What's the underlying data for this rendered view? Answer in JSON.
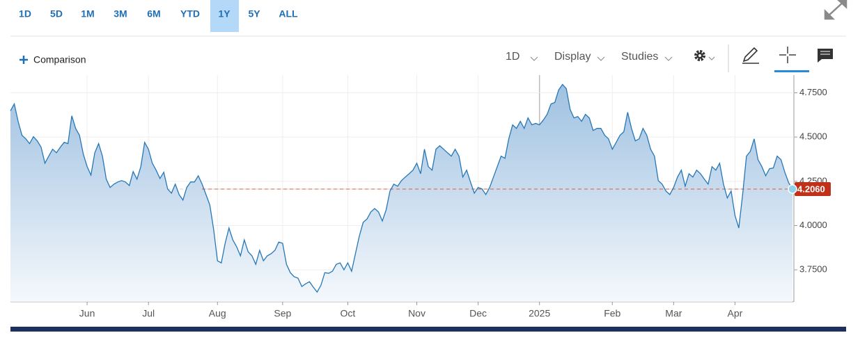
{
  "ui": {
    "ranges": [
      "1D",
      "5D",
      "1M",
      "3M",
      "6M",
      "YTD",
      "1Y",
      "5Y",
      "ALL"
    ],
    "selected": "1Y",
    "comparison": "Comparison",
    "interval": "1D",
    "display": "Display",
    "studies": "Studies"
  },
  "chart_data": {
    "type": "area",
    "color": "#2677b5",
    "categories": [
      null,
      null,
      null,
      null,
      null,
      null,
      null,
      null,
      null,
      null,
      null,
      null,
      null,
      null,
      null,
      null,
      null,
      null,
      null,
      null,
      "Jun",
      null,
      null,
      null,
      null,
      null,
      null,
      null,
      null,
      null,
      null,
      null,
      null,
      null,
      null,
      null,
      "Jul",
      null,
      null,
      null,
      null,
      null,
      null,
      null,
      null,
      null,
      null,
      null,
      null,
      null,
      null,
      null,
      null,
      null,
      "Aug",
      null,
      null,
      null,
      null,
      null,
      null,
      null,
      null,
      null,
      null,
      null,
      null,
      null,
      null,
      null,
      null,
      "Sep",
      null,
      null,
      null,
      null,
      null,
      null,
      null,
      null,
      null,
      null,
      null,
      null,
      null,
      null,
      null,
      null,
      "Oct",
      null,
      null,
      null,
      null,
      null,
      null,
      null,
      null,
      null,
      null,
      null,
      null,
      null,
      null,
      null,
      null,
      null,
      "Nov",
      null,
      null,
      null,
      null,
      null,
      null,
      null,
      null,
      null,
      null,
      null,
      null,
      null,
      null,
      null,
      "Dec",
      null,
      null,
      null,
      null,
      null,
      null,
      null,
      null,
      null,
      null,
      null,
      null,
      null,
      null,
      null,
      "2025",
      null,
      null,
      null,
      null,
      null,
      null,
      null,
      null,
      null,
      null,
      null,
      null,
      null,
      null,
      null,
      null,
      null,
      null,
      "Feb",
      null,
      null,
      null,
      null,
      null,
      null,
      null,
      null,
      null,
      null,
      null,
      null,
      null,
      null,
      null,
      "Mar",
      null,
      null,
      null,
      null,
      null,
      null,
      null,
      null,
      null,
      null,
      null,
      null,
      null,
      null,
      null,
      "Apr",
      null,
      null,
      null,
      null,
      null,
      null,
      null,
      null,
      null,
      null,
      null,
      null,
      null,
      null,
      null
    ],
    "values": [
      4.648,
      4.687,
      4.589,
      4.51,
      4.49,
      4.463,
      4.502,
      4.478,
      4.443,
      4.352,
      4.392,
      4.431,
      4.411,
      4.443,
      4.47,
      4.463,
      4.62,
      4.549,
      4.51,
      4.404,
      4.333,
      4.285,
      4.411,
      4.463,
      4.392,
      4.262,
      4.215,
      4.234,
      4.246,
      4.254,
      4.246,
      4.226,
      4.305,
      4.262,
      4.333,
      4.47,
      4.431,
      4.352,
      4.313,
      4.266,
      4.301,
      4.207,
      4.183,
      4.234,
      4.175,
      4.144,
      4.215,
      4.246,
      4.246,
      4.281,
      4.234,
      4.175,
      4.116,
      3.978,
      3.801,
      3.789,
      3.9,
      3.986,
      3.919,
      3.88,
      3.829,
      3.919,
      3.852,
      3.829,
      3.781,
      3.86,
      3.801,
      3.829,
      3.841,
      3.86,
      3.907,
      3.9,
      3.781,
      3.734,
      3.711,
      3.703,
      3.656,
      3.671,
      3.683,
      3.652,
      3.624,
      3.663,
      3.734,
      3.73,
      3.742,
      3.781,
      3.789,
      3.75,
      3.789,
      3.742,
      3.841,
      3.939,
      4.018,
      4.037,
      4.077,
      4.096,
      4.077,
      4.026,
      4.089,
      4.195,
      4.234,
      4.222,
      4.254,
      4.274,
      4.293,
      4.313,
      4.352,
      4.293,
      4.431,
      4.333,
      4.313,
      4.431,
      4.451,
      4.431,
      4.411,
      4.392,
      4.431,
      4.392,
      4.274,
      4.313,
      4.246,
      4.183,
      4.215,
      4.207,
      4.175,
      4.215,
      4.274,
      4.333,
      4.392,
      4.38,
      4.49,
      4.569,
      4.549,
      4.589,
      4.549,
      4.608,
      4.569,
      4.577,
      4.569,
      4.596,
      4.628,
      4.687,
      4.695,
      4.766,
      4.797,
      4.774,
      4.656,
      4.608,
      4.616,
      4.589,
      4.628,
      4.608,
      4.537,
      4.549,
      4.549,
      4.51,
      4.49,
      4.431,
      4.47,
      4.51,
      4.53,
      4.64,
      4.549,
      4.478,
      4.49,
      4.549,
      4.51,
      4.431,
      4.392,
      4.254,
      4.234,
      4.195,
      4.175,
      4.215,
      4.274,
      4.313,
      4.222,
      4.293,
      4.274,
      4.313,
      4.293,
      4.262,
      4.234,
      4.333,
      4.313,
      4.352,
      4.234,
      4.156,
      4.195,
      4.057,
      3.986,
      4.175,
      4.392,
      4.419,
      4.49,
      4.372,
      4.333,
      4.281,
      4.321,
      4.325,
      4.392,
      4.372,
      4.301,
      4.242,
      4.206
    ],
    "last_price": {
      "value": 4.206,
      "label": "4.2060"
    },
    "ylim": [
      3.57,
      4.85
    ],
    "yticks": [
      {
        "value": 3.75,
        "label": "3.7500"
      },
      {
        "value": 4.0,
        "label": "4.0000"
      },
      {
        "value": 4.25,
        "label": "4.2500"
      },
      {
        "value": 4.5,
        "label": "4.5000"
      },
      {
        "value": 4.75,
        "label": "4.7500"
      }
    ],
    "grid": true
  }
}
